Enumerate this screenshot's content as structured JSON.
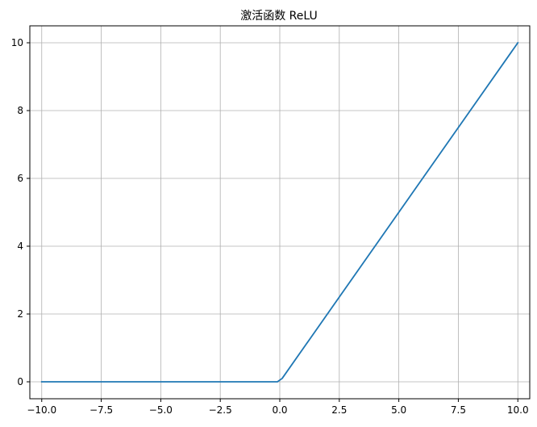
{
  "chart_data": {
    "type": "line",
    "title": "激活函数 ReLU",
    "xlabel": "",
    "ylabel": "",
    "xlim": [
      -10.5,
      10.5
    ],
    "ylim": [
      -0.5,
      10.5
    ],
    "xticks": [
      -10.0,
      -7.5,
      -5.0,
      -2.5,
      0.0,
      2.5,
      5.0,
      7.5,
      10.0
    ],
    "xtick_labels": [
      "−10.0",
      "−7.5",
      "−5.0",
      "−2.5",
      "0.0",
      "2.5",
      "5.0",
      "7.5",
      "10.0"
    ],
    "yticks": [
      0,
      2,
      4,
      6,
      8,
      10
    ],
    "ytick_labels": [
      "0",
      "2",
      "4",
      "6",
      "8",
      "10"
    ],
    "grid": true,
    "series": [
      {
        "color": "#1f77b4",
        "x": [
          -10.0,
          -0.1,
          0.1,
          10.0
        ],
        "y": [
          0.0,
          0.0,
          0.1,
          10.0
        ]
      }
    ]
  },
  "colors": {
    "grid": "#b0b0b0",
    "axes": "#000000",
    "background": "#ffffff"
  }
}
